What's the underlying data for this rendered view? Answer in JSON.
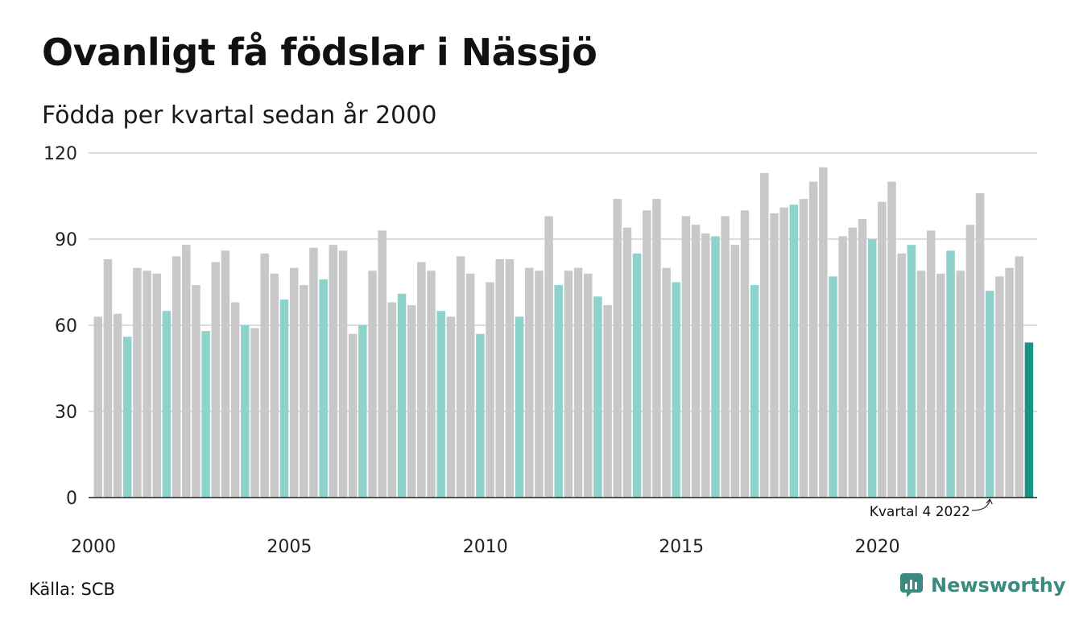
{
  "header": {
    "title": "Ovanligt få födslar i Nässjö",
    "subtitle": "Födda per kvartal sedan år 2000"
  },
  "footer": {
    "source": "Källa: SCB",
    "brand": "Newsworthy"
  },
  "colors": {
    "bar_default": "#c8c8c8",
    "bar_q4": "#8dd3cc",
    "bar_latest": "#1a9384",
    "grid": "#dcdcdc",
    "axis": "#222222",
    "brand": "#3a8a80"
  },
  "chart_data": {
    "type": "bar",
    "x_tick_labels": [
      "2000",
      "2005",
      "2010",
      "2015",
      "2020"
    ],
    "y_tick_labels": [
      "0",
      "30",
      "60",
      "90",
      "120"
    ],
    "ylim": [
      0,
      120
    ],
    "grid": true,
    "annotation": "Kvartal 4 2022",
    "series": [
      {
        "values": [
          63,
          83,
          64,
          56,
          80,
          79,
          78,
          65,
          84,
          88,
          74,
          58,
          82,
          86,
          68,
          60,
          59,
          85,
          78,
          69,
          80,
          74,
          87,
          76,
          88,
          86,
          57,
          60,
          79,
          93,
          68,
          71,
          67,
          82,
          79,
          65,
          63,
          84,
          78,
          57,
          75,
          83,
          83,
          63,
          80,
          79,
          98,
          74,
          79,
          80,
          78,
          70,
          67,
          104,
          94,
          85,
          100,
          104,
          80,
          75,
          98,
          95,
          92,
          91,
          98,
          88,
          100,
          74,
          113,
          99,
          101,
          102,
          104,
          110,
          115,
          77,
          91,
          94,
          97,
          90,
          103,
          110,
          85,
          88,
          79,
          93,
          78,
          86,
          79,
          95,
          106,
          72,
          77,
          80,
          84,
          54
        ]
      }
    ]
  }
}
